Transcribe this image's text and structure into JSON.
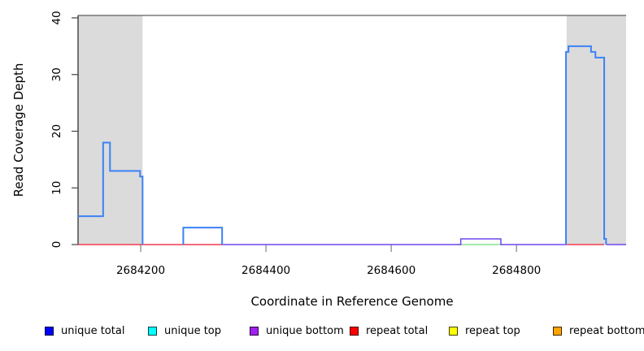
{
  "chart_data": {
    "type": "line",
    "title": "",
    "xlabel": "Coordinate in Reference Genome",
    "ylabel": "Read Coverage Depth",
    "xlim": [
      2684100,
      2684975
    ],
    "ylim": [
      0,
      40
    ],
    "x_ticks": [
      2684200,
      2684400,
      2684600,
      2684800
    ],
    "y_ticks": [
      0,
      10,
      20,
      30,
      40
    ],
    "grid": false,
    "legend_position": "bottom",
    "plot_style": "step",
    "shaded_regions": [
      {
        "x1": 2684100,
        "x2": 2684203,
        "color": "#dbdbdb",
        "note": "repeat-region band left"
      },
      {
        "x1": 2684880,
        "x2": 2684975,
        "color": "#dbdbdb",
        "note": "repeat-region band right"
      }
    ],
    "series": [
      {
        "name": "unique total",
        "legend_color": "#0000ff",
        "line_color": "#3b82f6",
        "line_width": 2,
        "paths": [
          [
            [
              2684100,
              2684140,
              5
            ],
            [
              2684140,
              2684151,
              18
            ],
            [
              2684151,
              2684199,
              13
            ],
            [
              2684199,
              2684203,
              12
            ],
            [
              2684203,
              2684203,
              0
            ]
          ],
          [
            [
              2684268,
              2684268,
              0
            ],
            [
              2684268,
              2684330,
              3
            ],
            [
              2684330,
              2684330,
              0
            ]
          ],
          [
            [
              2684879,
              2684879,
              0
            ],
            [
              2684879,
              2684883,
              34
            ],
            [
              2684883,
              2684919,
              35
            ],
            [
              2684919,
              2684926,
              34
            ],
            [
              2684926,
              2684940,
              33
            ],
            [
              2684940,
              2684943,
              1
            ],
            [
              2684943,
              2684943,
              0
            ]
          ]
        ]
      },
      {
        "name": "unique top",
        "legend_color": "#00ffff",
        "line_color": "#8ce08c",
        "line_width": 1.5,
        "paths": [
          [
            [
              2684705,
              2684777,
              0
            ]
          ]
        ]
      },
      {
        "name": "unique bottom",
        "legend_color": "#a020f0",
        "line_color": "#6f46f0",
        "line_width": 1.5,
        "paths": [
          [
            [
              2684330,
              2684711,
              0
            ],
            [
              2684711,
              2684775,
              1
            ],
            [
              2684775,
              2684880,
              0
            ]
          ],
          [
            [
              2684943,
              2684975,
              0
            ]
          ]
        ]
      },
      {
        "name": "repeat total",
        "legend_color": "#ff0000",
        "line_color": "#ee3c50",
        "line_width": 1.5,
        "paths": [
          [
            [
              2684100,
              2684330,
              0
            ]
          ],
          [
            [
              2684880,
              2684940,
              0
            ]
          ]
        ]
      },
      {
        "name": "repeat top",
        "legend_color": "#ffff00",
        "line_color": "#ffff00",
        "line_width": 1.5,
        "paths": []
      },
      {
        "name": "repeat bottom",
        "legend_color": "#ffa500",
        "line_color": "#ffa500",
        "line_width": 1.5,
        "paths": []
      }
    ]
  }
}
